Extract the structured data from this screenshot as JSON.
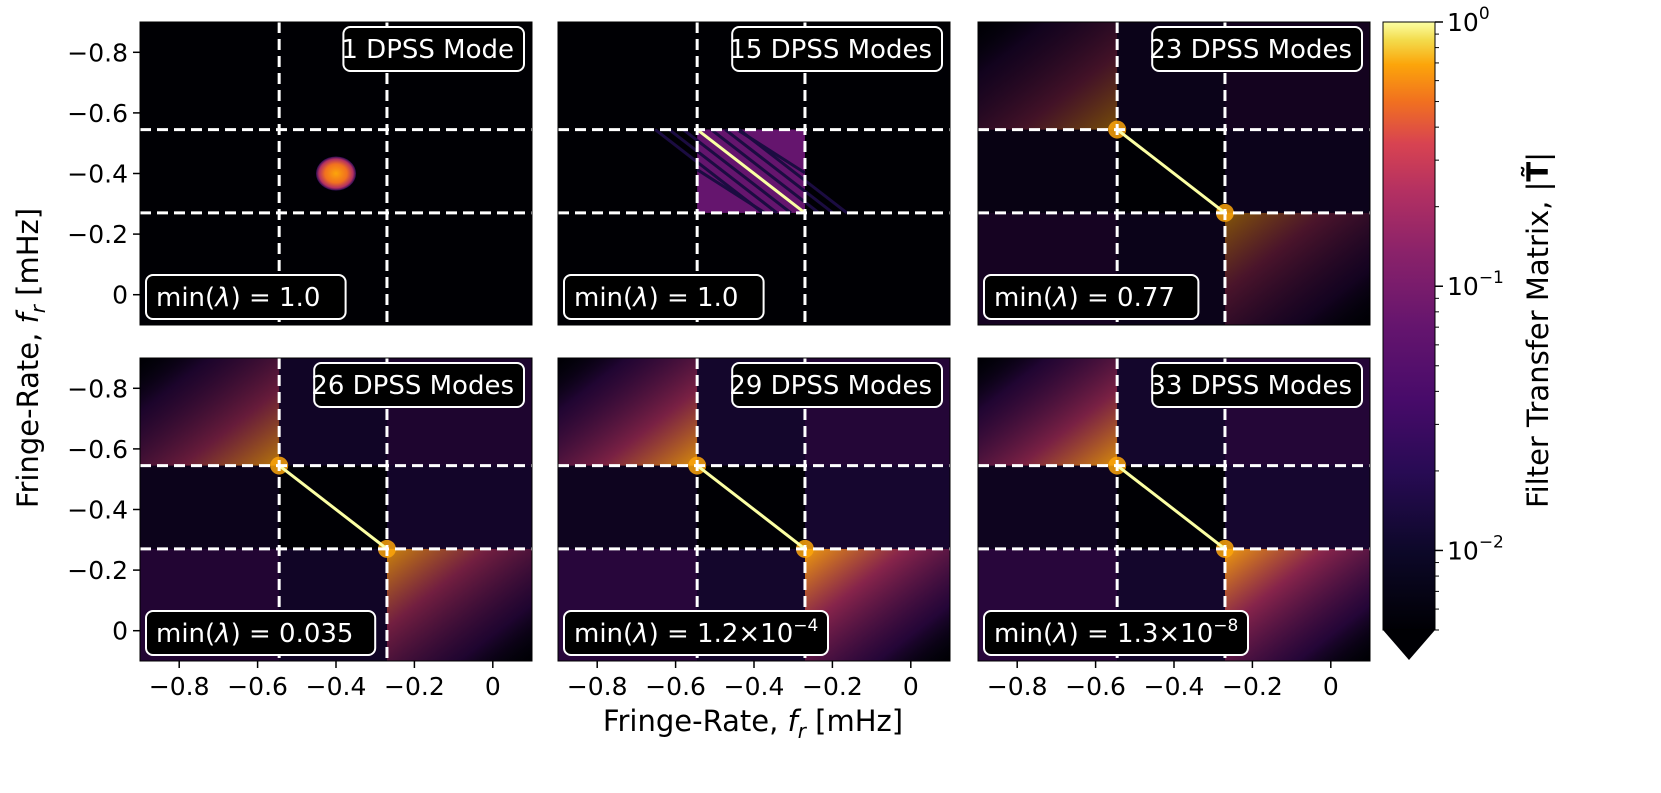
{
  "chart_data": {
    "type": "heatmap",
    "xlabel": "Fringe-Rate, f_r [mHz]",
    "xlabel_prefix": "Fringe-Rate, ",
    "xlabel_sym": "f",
    "xlabel_sub": "r",
    "xlabel_unit": " [mHz]",
    "ylabel": "Fringe-Rate, f_r [mHz]",
    "xlim": [
      -0.9,
      0.1
    ],
    "ylim": [
      0.1,
      -0.9
    ],
    "xticks": [
      "−0.8",
      "−0.6",
      "−0.4",
      "−0.2",
      "0"
    ],
    "xtick_values": [
      -0.8,
      -0.6,
      -0.4,
      -0.2,
      0
    ],
    "yticks": [
      "−0.8",
      "−0.6",
      "−0.4",
      "−0.2",
      "0"
    ],
    "ytick_values": [
      -0.8,
      -0.6,
      -0.4,
      -0.2,
      0
    ],
    "filter_edges": [
      -0.545,
      -0.27
    ],
    "colorbar": {
      "label": "Filter Transfer Matrix, |T̃|",
      "label_prefix": "Filter Transfer Matrix, |",
      "label_sym": "T̃",
      "label_suffix": "|",
      "scale": "log",
      "range": [
        0.005,
        1.0
      ],
      "ticks": [
        {
          "base": "10",
          "exp": "0",
          "value": 1.0
        },
        {
          "base": "10",
          "exp": "−1",
          "value": 0.1
        },
        {
          "base": "10",
          "exp": "−2",
          "value": 0.01
        }
      ],
      "extend": "min",
      "colormap": "inferno"
    },
    "panels": [
      {
        "title": "1 DPSS Mode",
        "modes": 1,
        "min_lambda_prefix": "min(",
        "min_lambda_sym": "λ",
        "min_lambda_value": ") = 1.0",
        "min_lambda_exp": ""
      },
      {
        "title": "15 DPSS Modes",
        "modes": 15,
        "min_lambda_prefix": "min(",
        "min_lambda_sym": "λ",
        "min_lambda_value": ") = 1.0",
        "min_lambda_exp": ""
      },
      {
        "title": "23 DPSS Modes",
        "modes": 23,
        "min_lambda_prefix": "min(",
        "min_lambda_sym": "λ",
        "min_lambda_value": ") = 0.77",
        "min_lambda_exp": ""
      },
      {
        "title": "26 DPSS Modes",
        "modes": 26,
        "min_lambda_prefix": "min(",
        "min_lambda_sym": "λ",
        "min_lambda_value": ") = 0.035",
        "min_lambda_exp": ""
      },
      {
        "title": "29 DPSS Modes",
        "modes": 29,
        "min_lambda_prefix": "min(",
        "min_lambda_sym": "λ",
        "min_lambda_value": ") = 1.2×10",
        "min_lambda_exp": "−4"
      },
      {
        "title": "33 DPSS Modes",
        "modes": 33,
        "min_lambda_prefix": "min(",
        "min_lambda_sym": "λ",
        "min_lambda_value": ") = 1.3×10",
        "min_lambda_exp": "−8"
      }
    ]
  }
}
